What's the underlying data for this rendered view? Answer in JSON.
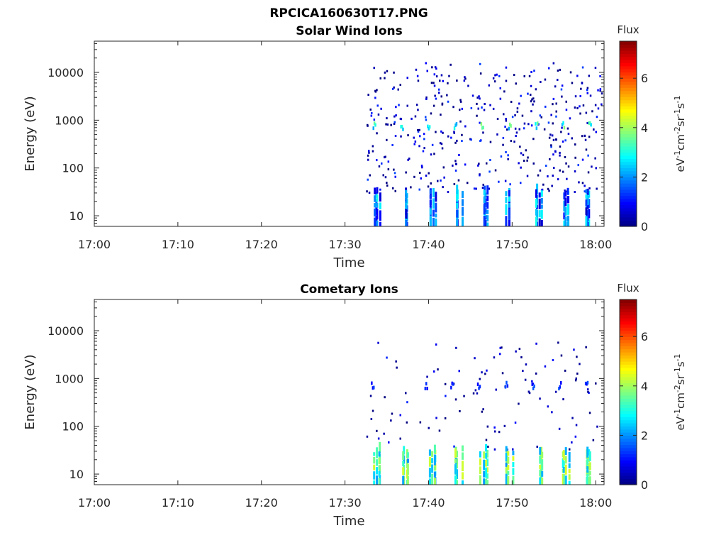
{
  "figure_title": "RPCICA160630T17.PNG",
  "chart_data": [
    {
      "type": "heatmap",
      "title": "Solar Wind Ions",
      "xlabel": "Time",
      "ylabel": "Energy (eV)",
      "x_tick_labels": [
        "17:00",
        "17:10",
        "17:20",
        "17:30",
        "17:40",
        "17:50",
        "18:00"
      ],
      "x_range_minutes": [
        0,
        61
      ],
      "y_scale": "log",
      "y_range": [
        6,
        45000
      ],
      "y_ticks": [
        10,
        100,
        1000,
        10000
      ],
      "y_tick_labels": [
        "10",
        "100",
        "1000",
        "10000"
      ],
      "colorbar": {
        "label_top": "Flux",
        "unit_label": "eV-1cm-2sr-1s-1",
        "range": [
          0,
          7.5
        ],
        "ticks": [
          "0",
          "2",
          "4",
          "6"
        ],
        "colormap": "jet"
      },
      "data_start_minute": 32.5,
      "features": [
        {
          "description": "sparse low-flux points 30-15000 eV",
          "flux_range": [
            0,
            1.5
          ]
        },
        {
          "description": "periodic peaks near 750 eV",
          "times_min": [
            33.3,
            36.6,
            39.8,
            43.0,
            46.2,
            49.5,
            52.7,
            55.9,
            59.1
          ],
          "energy_eV": 750,
          "flux": 3.5
        },
        {
          "description": "low-energy columns 6-30 eV",
          "times_min": [
            33.8,
            37.0,
            40.3,
            43.5,
            46.5,
            49.6,
            53.2,
            56.3,
            59.2
          ],
          "flux_range": [
            0.5,
            3
          ]
        }
      ]
    },
    {
      "type": "heatmap",
      "title": "Cometary Ions",
      "xlabel": "Time",
      "ylabel": "Energy (eV)",
      "x_tick_labels": [
        "17:00",
        "17:10",
        "17:20",
        "17:30",
        "17:40",
        "17:50",
        "18:00"
      ],
      "x_range_minutes": [
        0,
        61
      ],
      "y_scale": "log",
      "y_range": [
        6,
        45000
      ],
      "y_ticks": [
        10,
        100,
        1000,
        10000
      ],
      "y_tick_labels": [
        "10",
        "100",
        "1000",
        "10000"
      ],
      "colorbar": {
        "label_top": "Flux",
        "unit_label": "eV-1cm-2sr-1s-1",
        "range": [
          0,
          7.5
        ],
        "ticks": [
          "0",
          "2",
          "4",
          "6"
        ],
        "colormap": "jet"
      },
      "data_start_minute": 32.5,
      "features": [
        {
          "description": "sparse points 30-6000 eV",
          "flux_range": [
            0,
            1.2
          ]
        },
        {
          "description": "weak peaks near 700 eV",
          "times_min": [
            33.1,
            39.5,
            42.6,
            45.8,
            49.1,
            52.3,
            55.5,
            58.7
          ],
          "energy_eV": 700,
          "flux": 1.5
        },
        {
          "description": "strong low-energy columns 6-30 eV",
          "times_min": [
            33.8,
            37.0,
            40.3,
            43.5,
            46.5,
            49.6,
            53.2,
            56.3,
            59.2
          ],
          "flux_range": [
            2,
            4.5
          ]
        }
      ]
    }
  ]
}
